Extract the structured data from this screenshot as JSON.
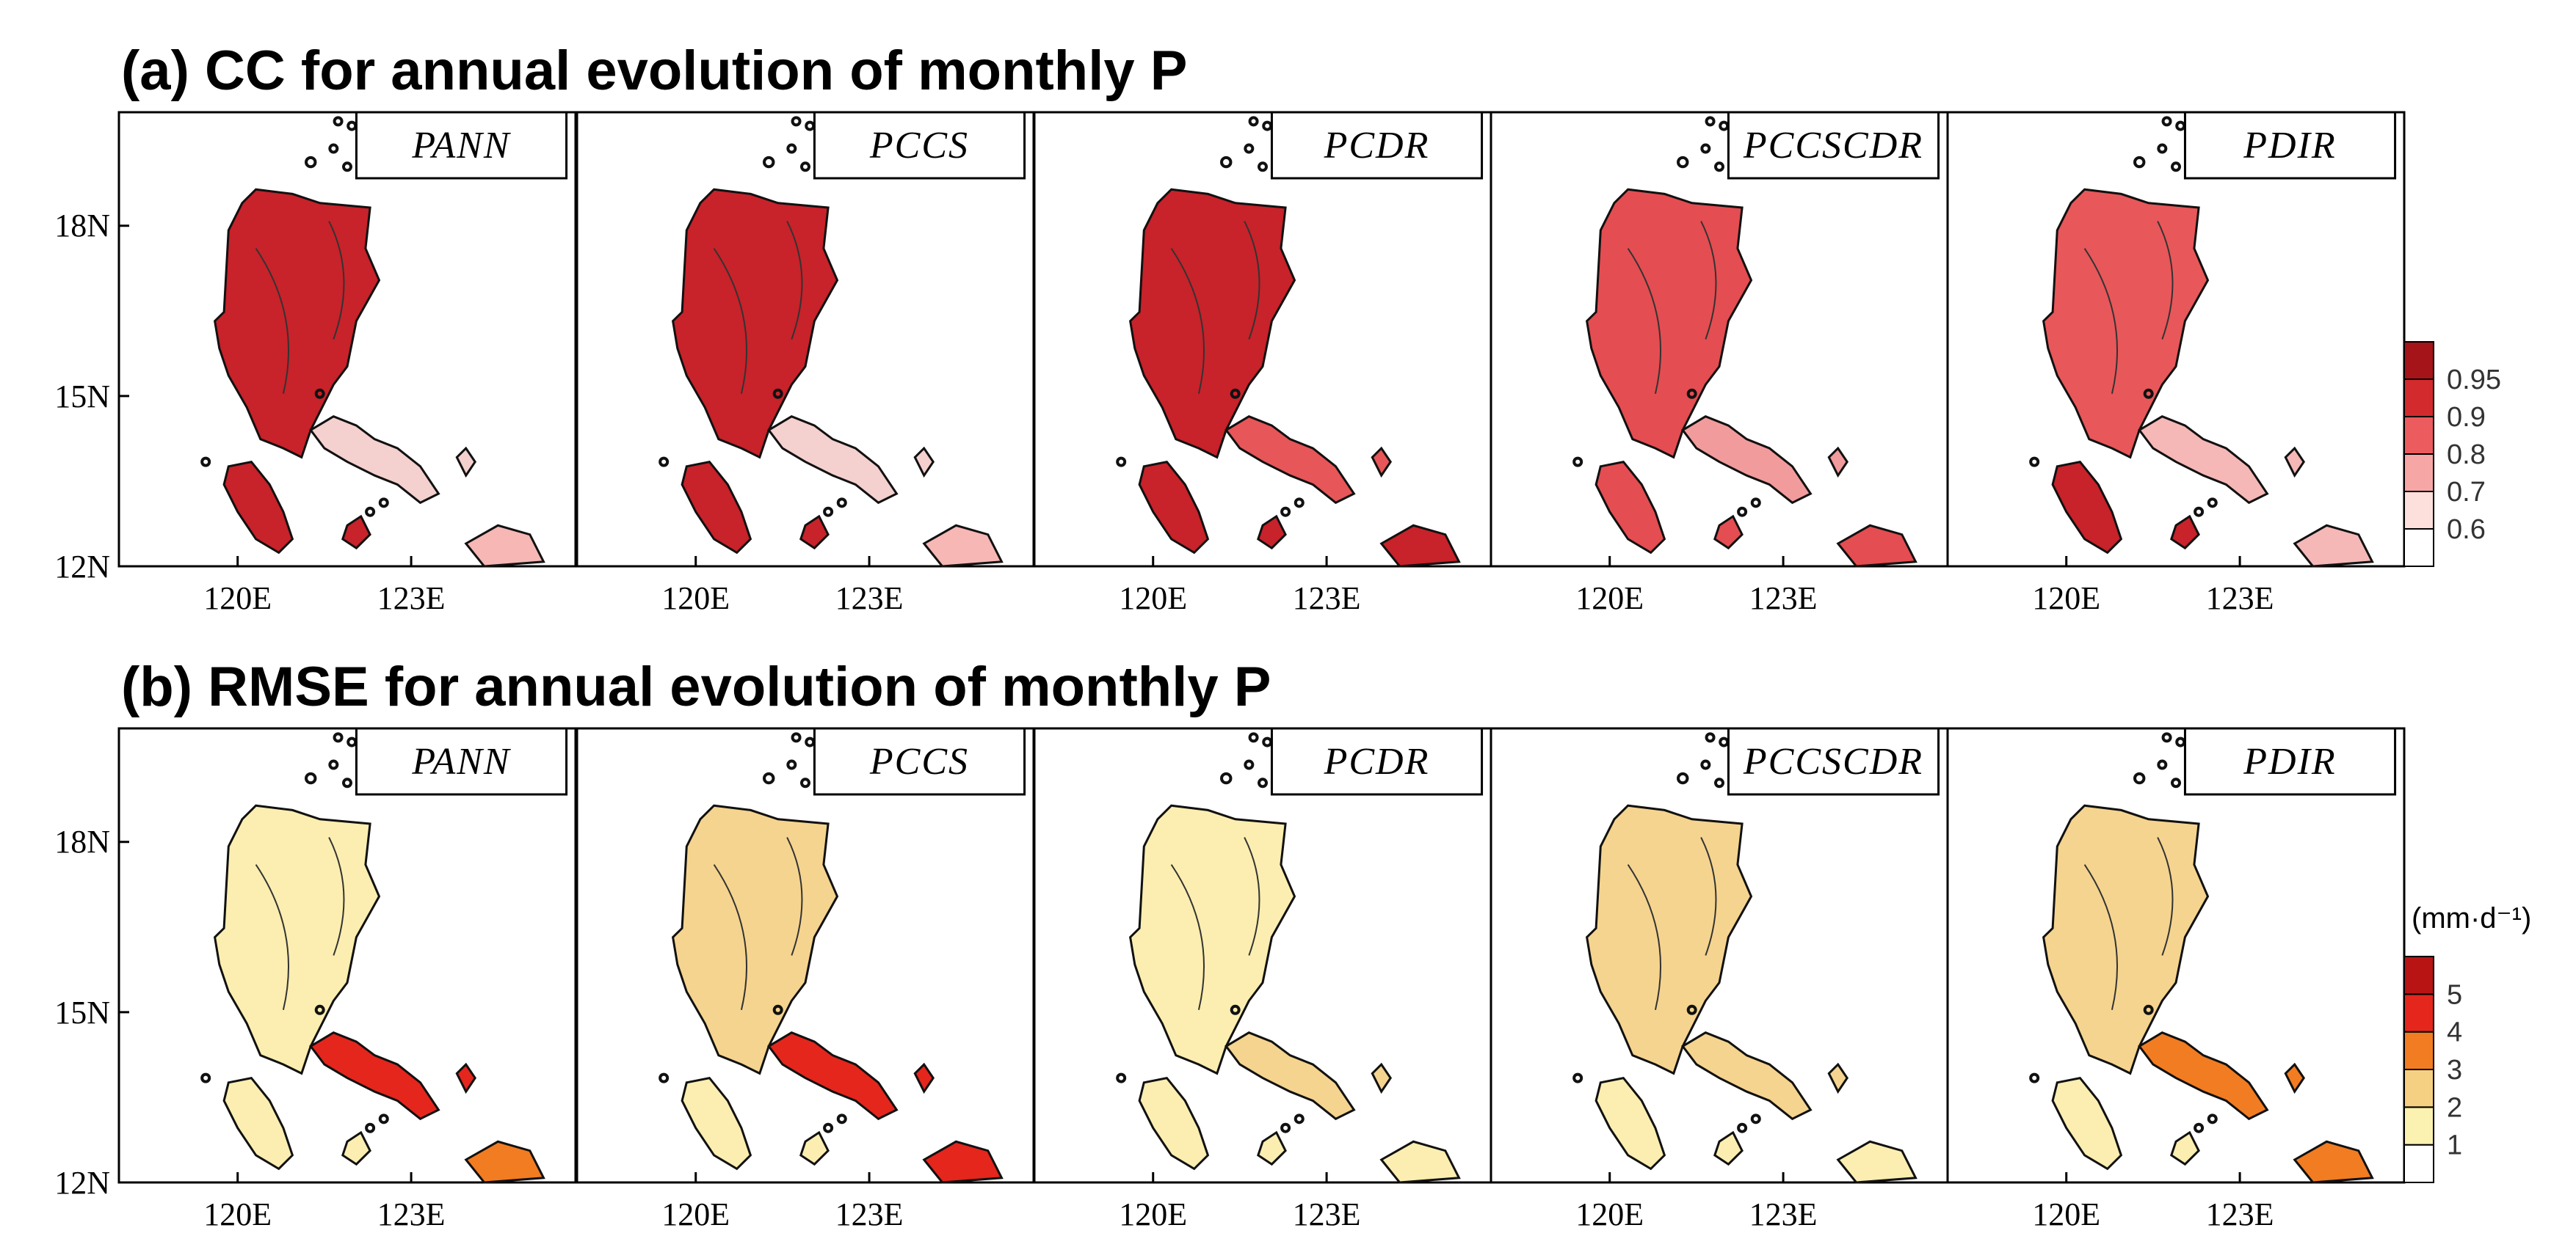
{
  "figure": {
    "rows": [
      {
        "id": "a",
        "title": "(a) CC for annual evolution of monthly P",
        "colorbar": {
          "unit": "",
          "ticks": [
            "0.6",
            "0.7",
            "0.8",
            "0.9",
            "0.95"
          ],
          "colors": [
            "#ffffff",
            "#fde0dc",
            "#f7a6a6",
            "#ec5c5f",
            "#d32a2e",
            "#a51418"
          ]
        },
        "panels": [
          {
            "label": "PANN",
            "main": "#c8222a",
            "south": "#c8222a",
            "east": "#f4d0cf",
            "tip": "#f6b7b5"
          },
          {
            "label": "PCCS",
            "main": "#c8222a",
            "south": "#c8222a",
            "east": "#f4d0cf",
            "tip": "#f6b7b5"
          },
          {
            "label": "PCDR",
            "main": "#c8222a",
            "south": "#c8222a",
            "east": "#e75658",
            "tip": "#c8222a"
          },
          {
            "label": "PCCSCDR",
            "main": "#e44d51",
            "south": "#e44d51",
            "east": "#f29b9c",
            "tip": "#e44d51"
          },
          {
            "label": "PDIR",
            "main": "#e8575a",
            "south": "#c8222a",
            "east": "#f5b8b7",
            "tip": "#f5b8b7"
          }
        ]
      },
      {
        "id": "b",
        "title": "(b) RMSE for annual evolution of monthly P",
        "colorbar": {
          "unit": "(mm·d⁻¹)",
          "ticks": [
            "1",
            "2",
            "3",
            "4",
            "5"
          ],
          "colors": [
            "#ffffff",
            "#fbf1b0",
            "#f5cf82",
            "#f27c22",
            "#e4261d",
            "#b81414"
          ]
        },
        "panels": [
          {
            "label": "PANN",
            "main": "#fbeeb0",
            "south": "#fbeeb0",
            "east": "#e4261d",
            "tip": "#f27c22"
          },
          {
            "label": "PCCS",
            "main": "#f5d48f",
            "south": "#fbeeb0",
            "east": "#e4261d",
            "tip": "#e4261d"
          },
          {
            "label": "PCDR",
            "main": "#fbeeb0",
            "south": "#fbeeb0",
            "east": "#f5d48f",
            "tip": "#fbeeb0"
          },
          {
            "label": "PCCSCDR",
            "main": "#f5d48f",
            "south": "#fbeeb0",
            "east": "#f5d48f",
            "tip": "#fbeeb0"
          },
          {
            "label": "PDIR",
            "main": "#f5d48f",
            "south": "#fbeeb0",
            "east": "#f27c22",
            "tip": "#f27c22"
          }
        ]
      }
    ],
    "lat_labels": [
      "18N",
      "15N",
      "12N"
    ],
    "lon_labels": [
      "120E",
      "123E"
    ]
  }
}
